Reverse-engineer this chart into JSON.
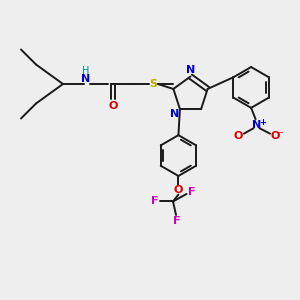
{
  "background_color": "#eeeeee",
  "bond_color": "#1a1a1a",
  "figsize": [
    3.0,
    3.0
  ],
  "dpi": 100,
  "colors": {
    "N": "#0000cc",
    "O": "#dd0000",
    "S": "#bbaa00",
    "F": "#cc00bb",
    "H_on_N": "#008888",
    "plus": "#0000cc",
    "minus": "#dd0000"
  },
  "xlim": [
    0,
    10
  ],
  "ylim": [
    0,
    10
  ]
}
